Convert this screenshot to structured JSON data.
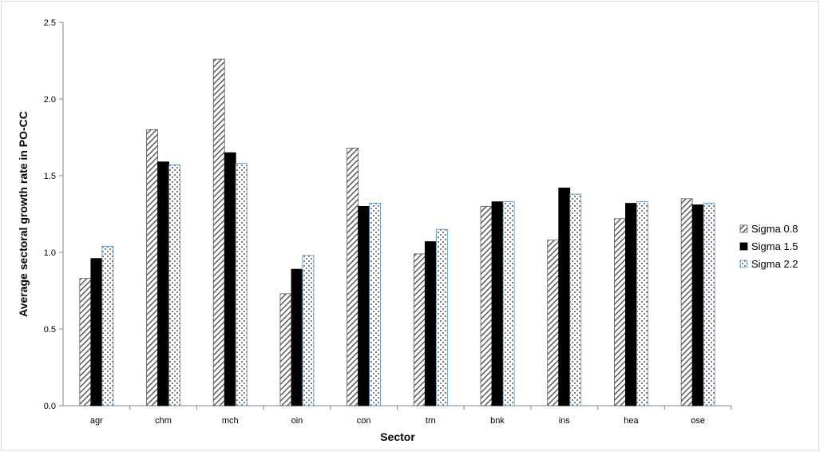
{
  "chart_data": {
    "type": "bar",
    "title": "",
    "xlabel": "Sector",
    "ylabel": "Average sectoral growth rate in PO-CC",
    "ylim": [
      0,
      2.5
    ],
    "yticks": [
      "0.0",
      "0.5",
      "1.0",
      "1.5",
      "2.0",
      "2.5"
    ],
    "grid": false,
    "legend_position": "right",
    "categories": [
      "agr",
      "chm",
      "mch",
      "oin",
      "con",
      "trn",
      "bnk",
      "ins",
      "hea",
      "ose"
    ],
    "series": [
      {
        "name": "Sigma 0.8",
        "pattern": "diagonal-hatch",
        "color": "#595959",
        "values": [
          0.83,
          1.8,
          2.26,
          0.73,
          1.68,
          0.99,
          1.3,
          1.08,
          1.22,
          1.35
        ]
      },
      {
        "name": "Sigma 1.5",
        "pattern": "solid",
        "color": "#000000",
        "values": [
          0.96,
          1.59,
          1.65,
          0.89,
          1.3,
          1.07,
          1.33,
          1.42,
          1.32,
          1.31
        ]
      },
      {
        "name": "Sigma 2.2",
        "pattern": "dotted-check",
        "color": "#4a90c8",
        "values": [
          1.04,
          1.57,
          1.58,
          0.98,
          1.32,
          1.15,
          1.33,
          1.38,
          1.33,
          1.32
        ]
      }
    ]
  }
}
